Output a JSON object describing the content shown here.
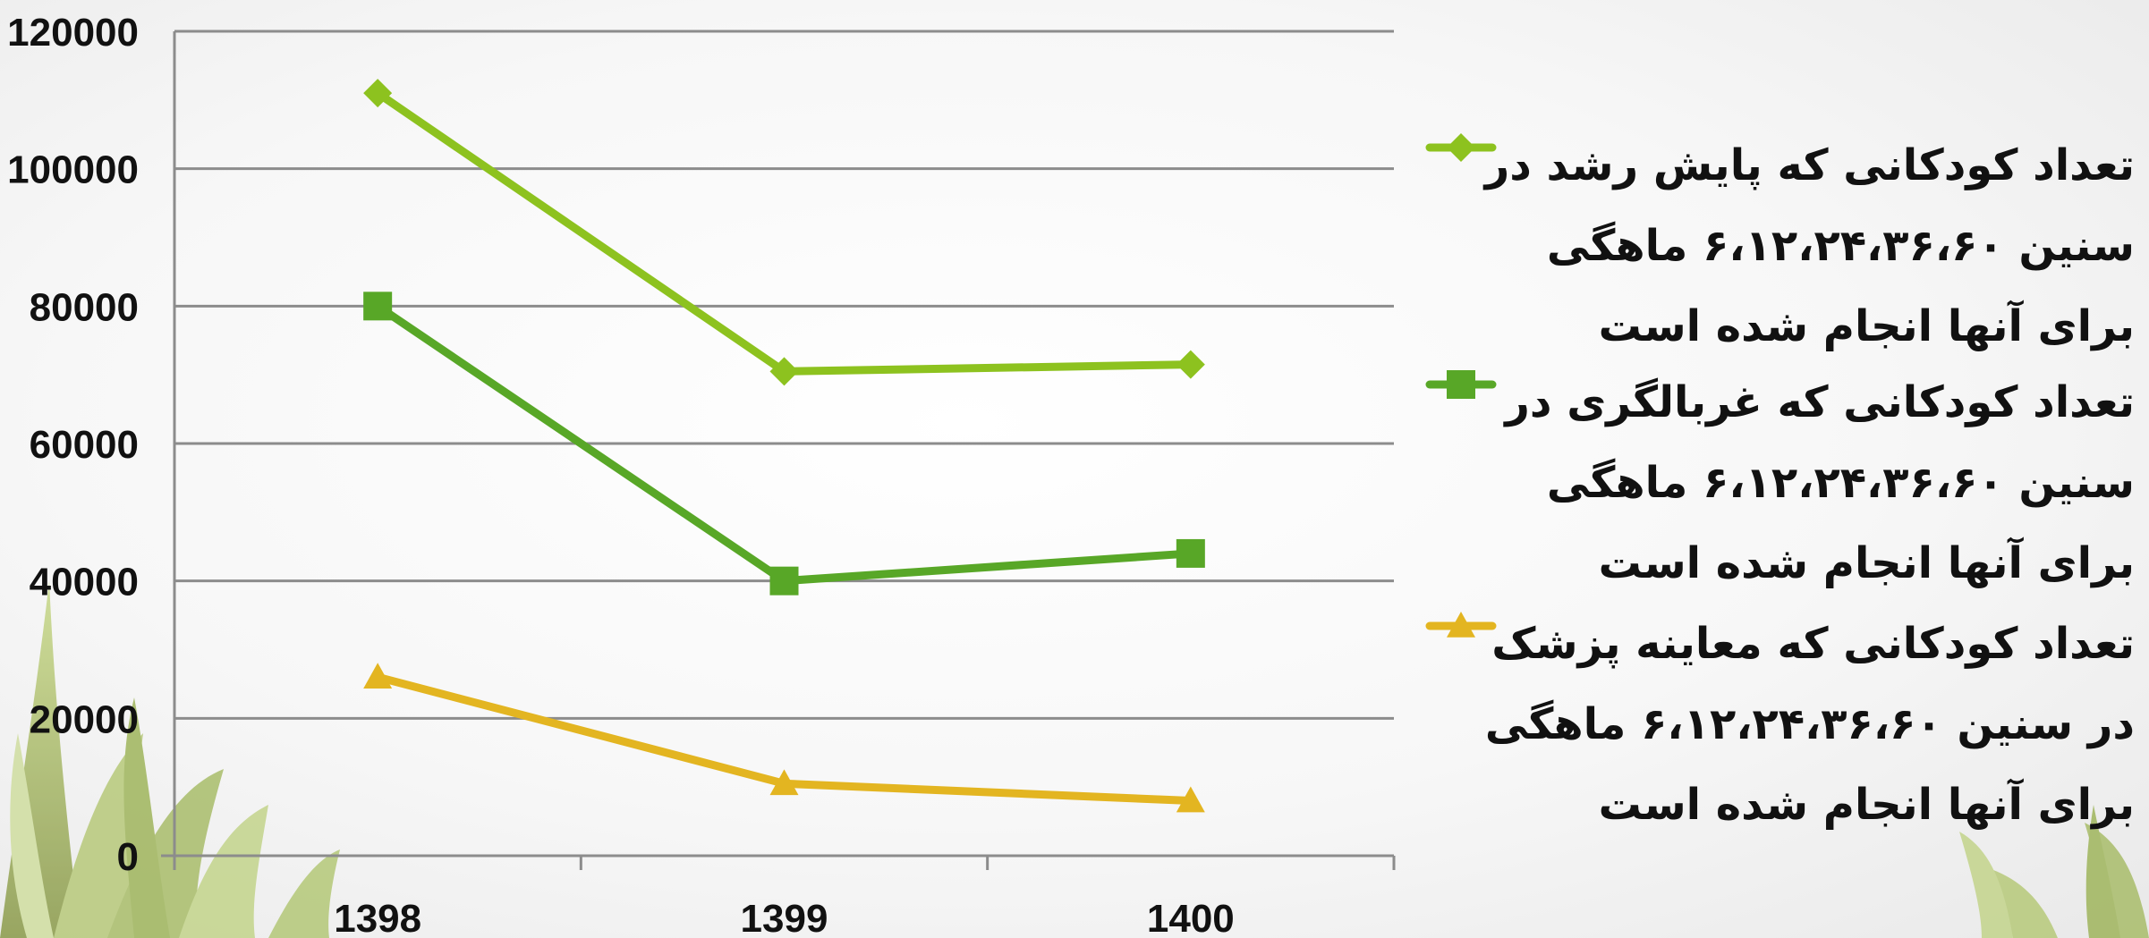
{
  "chart_data": {
    "type": "line",
    "categories": [
      "1398",
      "1399",
      "1400"
    ],
    "ylim": [
      0,
      120000
    ],
    "yticks": [
      "0",
      "20000",
      "40000",
      "60000",
      "80000",
      "100000",
      "120000"
    ],
    "grid": true,
    "legend_position": "right",
    "series": [
      {
        "name": "تعداد کودکانی که پایش رشد در سنین ۶،۱۲،۲۴،۳۶،۶۰ ماهگی برای آنها انجام شده است",
        "values": [
          111000,
          70500,
          71500
        ],
        "color": "#8dc21f",
        "marker": "diamond"
      },
      {
        "name": "تعداد کودکانی که غربالگری در سنین ۶،۱۲،۲۴،۳۶،۶۰ ماهگی برای آنها انجام شده است",
        "values": [
          80000,
          40000,
          44000
        ],
        "color": "#58a727",
        "marker": "square"
      },
      {
        "name": "تعداد کودکانی که معاینه پزشک در سنین ۶،۱۲،۲۴،۳۶،۶۰ ماهگی برای آنها انجام شده است",
        "values": [
          26000,
          10500,
          8000
        ],
        "color": "#e3b521",
        "marker": "triangle"
      }
    ]
  }
}
